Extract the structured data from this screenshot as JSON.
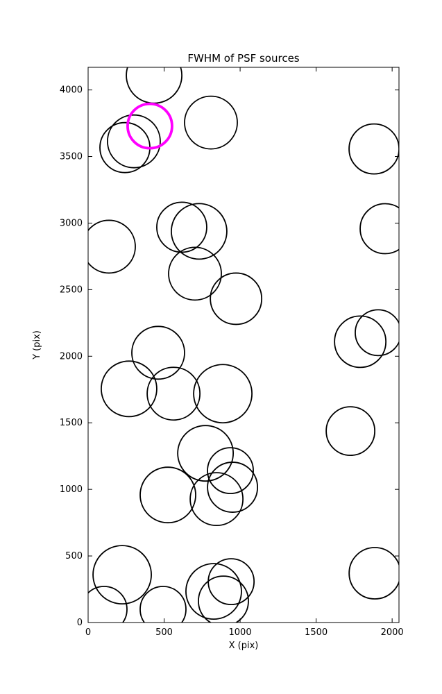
{
  "chart_data": {
    "type": "scatter",
    "title": "FWHM of PSF sources",
    "xlabel": "X (pix)",
    "ylabel": "Y (pix)",
    "xlim": [
      0,
      2045
    ],
    "ylim": [
      0,
      4170
    ],
    "xticks": [
      0,
      500,
      1000,
      1500,
      2000
    ],
    "yticks": [
      0,
      500,
      1000,
      1500,
      2000,
      2500,
      3000,
      3500,
      4000
    ],
    "grid": false,
    "legend": "none",
    "marker_style": "open-circle",
    "colors": {
      "source": "#000000",
      "highlight": "#ff00ff"
    },
    "points": [
      {
        "x": 434,
        "y": 4109,
        "r": 40
      },
      {
        "x": 808,
        "y": 3755,
        "r": 38
      },
      {
        "x": 301,
        "y": 3614,
        "r": 38
      },
      {
        "x": 242,
        "y": 3567,
        "r": 36
      },
      {
        "x": 1881,
        "y": 3557,
        "r": 36
      },
      {
        "x": 1954,
        "y": 2958,
        "r": 36
      },
      {
        "x": 137,
        "y": 2823,
        "r": 38
      },
      {
        "x": 616,
        "y": 2969,
        "r": 36
      },
      {
        "x": 730,
        "y": 2938,
        "r": 40
      },
      {
        "x": 703,
        "y": 2620,
        "r": 38
      },
      {
        "x": 973,
        "y": 2432,
        "r": 37
      },
      {
        "x": 1790,
        "y": 2109,
        "r": 37
      },
      {
        "x": 1908,
        "y": 2177,
        "r": 33
      },
      {
        "x": 461,
        "y": 2026,
        "r": 38
      },
      {
        "x": 269,
        "y": 1755,
        "r": 40
      },
      {
        "x": 562,
        "y": 1719,
        "r": 38
      },
      {
        "x": 886,
        "y": 1719,
        "r": 42
      },
      {
        "x": 1726,
        "y": 1438,
        "r": 35
      },
      {
        "x": 772,
        "y": 1271,
        "r": 40
      },
      {
        "x": 936,
        "y": 1141,
        "r": 33
      },
      {
        "x": 950,
        "y": 1016,
        "r": 36
      },
      {
        "x": 525,
        "y": 958,
        "r": 40
      },
      {
        "x": 845,
        "y": 927,
        "r": 38
      },
      {
        "x": 224,
        "y": 359,
        "r": 42
      },
      {
        "x": 105,
        "y": 99,
        "r": 33
      },
      {
        "x": 493,
        "y": 99,
        "r": 33
      },
      {
        "x": 826,
        "y": 234,
        "r": 40
      },
      {
        "x": 941,
        "y": 307,
        "r": 33
      },
      {
        "x": 890,
        "y": 161,
        "r": 36
      },
      {
        "x": 1886,
        "y": 370,
        "r": 37
      },
      {
        "x": 406,
        "y": 3729,
        "r": 32,
        "highlight": true
      }
    ]
  }
}
